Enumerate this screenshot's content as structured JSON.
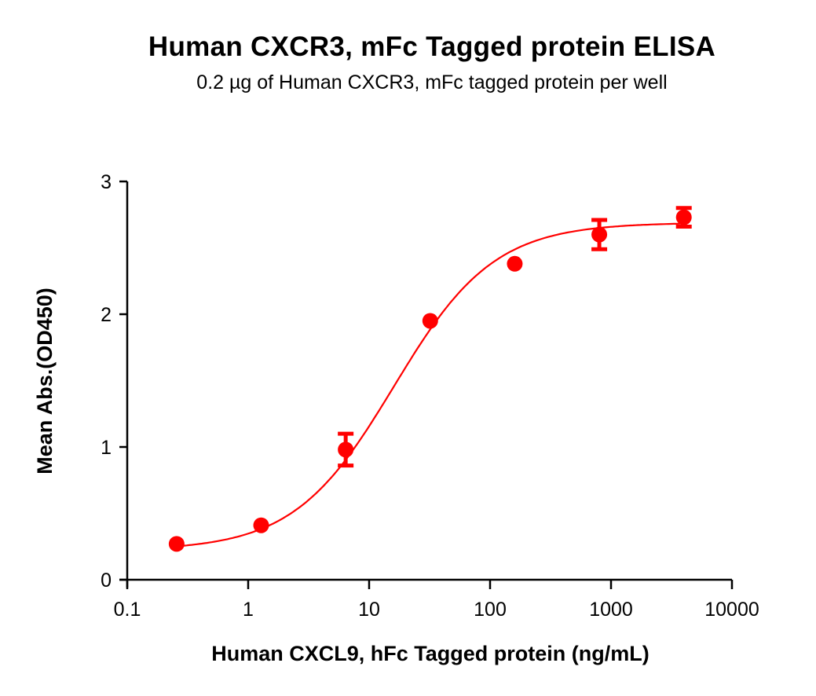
{
  "title": "Human CXCR3, mFc Tagged protein ELISA",
  "subtitle": "0.2 µg of Human CXCR3, mFc tagged protein per well",
  "colors": {
    "series": "#ff0000",
    "axis": "#000000",
    "background": "#ffffff"
  },
  "chart_data": {
    "type": "scatter",
    "title": "Human CXCR3, mFc Tagged protein ELISA",
    "subtitle": "0.2 µg of Human CXCR3, mFc tagged protein per well",
    "xlabel": "Human CXCL9, hFc Tagged protein  (ng/mL)",
    "ylabel": "Mean Abs.(OD450)",
    "xscale": "log",
    "xlim": [
      0.1,
      10000
    ],
    "ylim": [
      0,
      3
    ],
    "xticks": [
      "0.1",
      "1",
      "10",
      "100",
      "1000",
      "10000"
    ],
    "yticks": [
      "0",
      "1",
      "2",
      "3"
    ],
    "grid": false,
    "legend": null,
    "series": [
      {
        "name": "Human CXCL9, hFc Tagged protein",
        "color": "#ff0000",
        "fit": "4-parameter logistic curve",
        "x": [
          0.256,
          1.28,
          6.4,
          32,
          160,
          800,
          4000
        ],
        "y": [
          0.27,
          0.41,
          0.98,
          1.95,
          2.38,
          2.6,
          2.73
        ],
        "error": [
          0.0,
          0.0,
          0.12,
          0.0,
          0.0,
          0.11,
          0.07
        ]
      }
    ]
  }
}
